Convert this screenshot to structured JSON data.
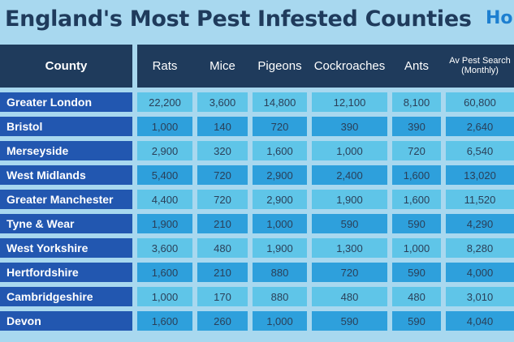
{
  "title": "England's Most Pest Infested Counties",
  "logo_text": "Ho",
  "chart_data": {
    "type": "table",
    "columns": [
      "County",
      "Rats",
      "Mice",
      "Pigeons",
      "Cockroaches",
      "Ants",
      "Av Pest Search (Monthly)"
    ],
    "rows": [
      {
        "county": "Greater London",
        "values": [
          "22,200",
          "3,600",
          "14,800",
          "12,100",
          "8,100",
          "60,800"
        ]
      },
      {
        "county": "Bristol",
        "values": [
          "1,000",
          "140",
          "720",
          "390",
          "390",
          "2,640"
        ]
      },
      {
        "county": "Merseyside",
        "values": [
          "2,900",
          "320",
          "1,600",
          "1,000",
          "720",
          "6,540"
        ]
      },
      {
        "county": "West Midlands",
        "values": [
          "5,400",
          "720",
          "2,900",
          "2,400",
          "1,600",
          "13,020"
        ]
      },
      {
        "county": "Greater Manchester",
        "values": [
          "4,400",
          "720",
          "2,900",
          "1,900",
          "1,600",
          "11,520"
        ]
      },
      {
        "county": "Tyne & Wear",
        "values": [
          "1,900",
          "210",
          "1,000",
          "590",
          "590",
          "4,290"
        ]
      },
      {
        "county": "West Yorkshire",
        "values": [
          "3,600",
          "480",
          "1,900",
          "1,300",
          "1,000",
          "8,280"
        ]
      },
      {
        "county": "Hertfordshire",
        "values": [
          "1,600",
          "210",
          "880",
          "720",
          "590",
          "4,000"
        ]
      },
      {
        "county": "Cambridgeshire",
        "values": [
          "1,000",
          "170",
          "880",
          "480",
          "480",
          "3,010"
        ]
      },
      {
        "county": "Devon",
        "values": [
          "1,600",
          "260",
          "1,000",
          "590",
          "590",
          "4,040"
        ]
      }
    ]
  },
  "colors": {
    "header_bg": "#1f3b5c",
    "county_bg": "#2257b0",
    "cell_light": "#5fc5e8",
    "cell_dark": "#2ea0dc",
    "page_bg": "#a8d8ef"
  }
}
